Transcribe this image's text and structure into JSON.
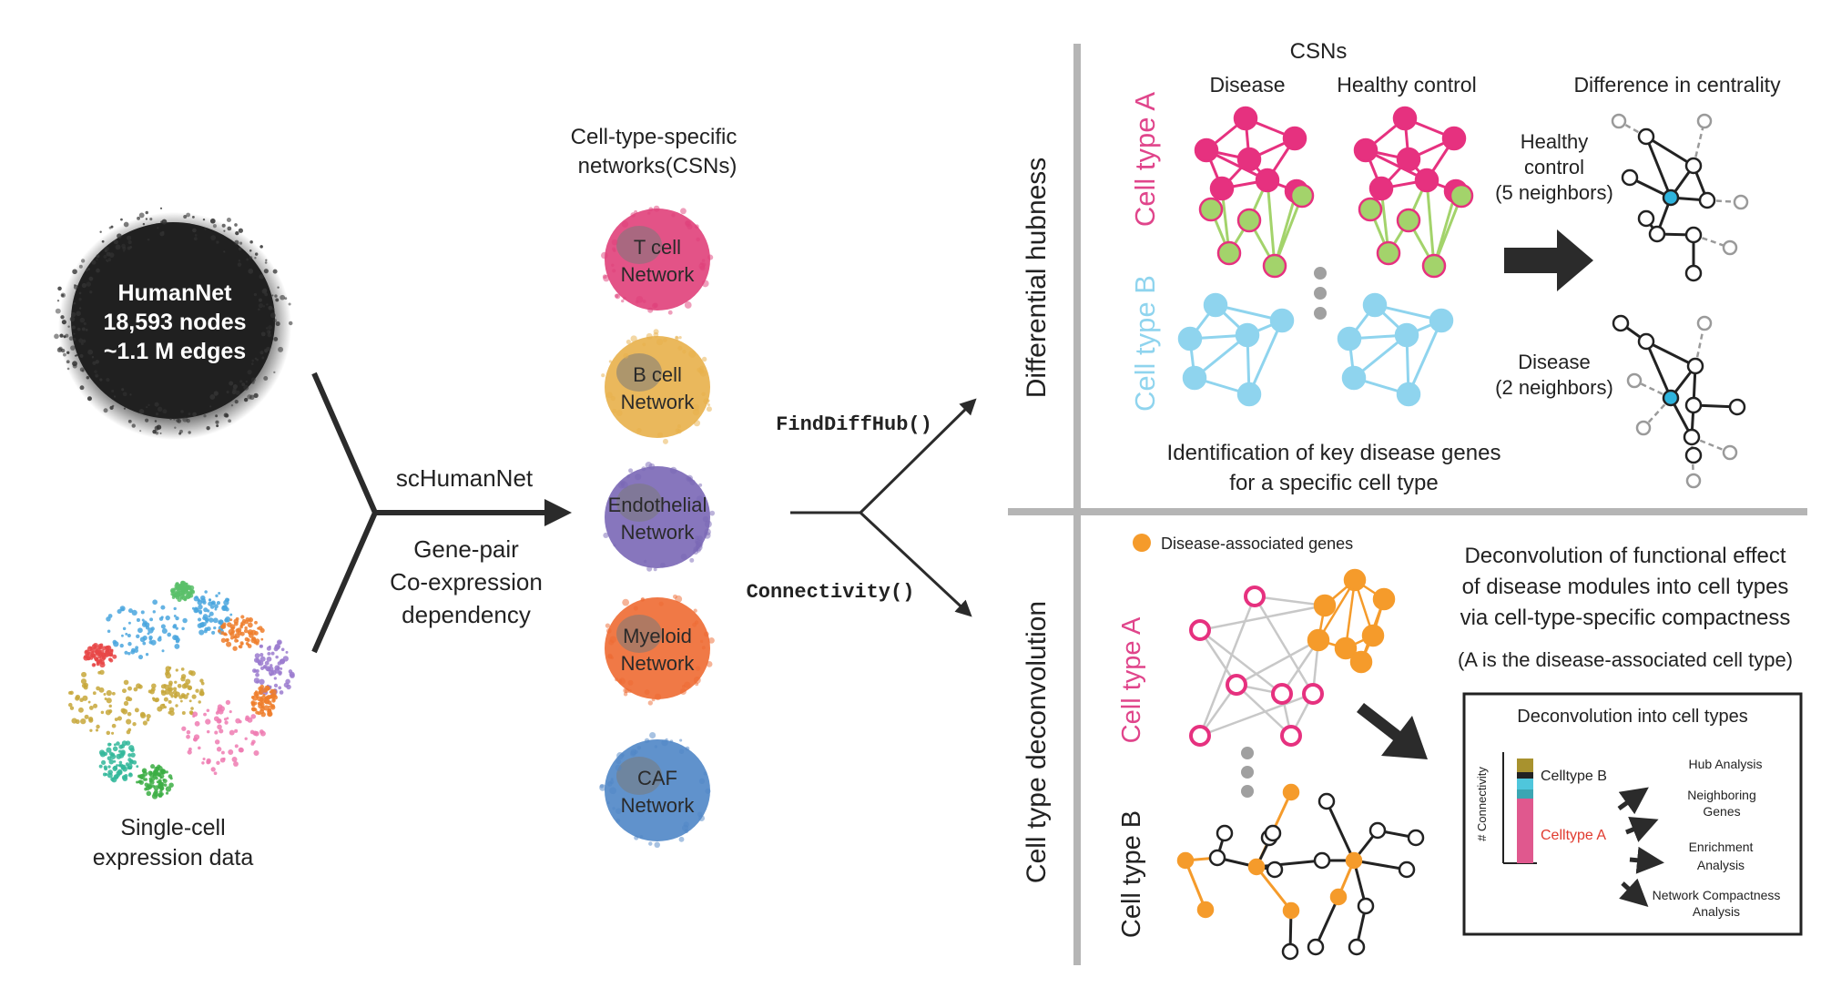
{
  "humannet": {
    "title": "HumanNet",
    "nodes": "18,593 nodes",
    "edges": "~1.1 M edges"
  },
  "single_cell": {
    "line1": "Single-cell",
    "line2": "expression data"
  },
  "schumannet_label": "scHumanNet",
  "gene_pair": {
    "line1": "Gene-pair",
    "line2": "Co-expression",
    "line3": "dependency"
  },
  "csn_header": {
    "line1": "Cell-type-specific",
    "line2": "networks(CSNs)"
  },
  "networks": [
    {
      "line1": "T cell",
      "line2": "Network",
      "color": "#e0407a"
    },
    {
      "line1": "B cell",
      "line2": "Network",
      "color": "#e8b04a"
    },
    {
      "line1": "Endothelial",
      "line2": "Network",
      "color": "#7a67b6"
    },
    {
      "line1": "Myeloid",
      "line2": "Network",
      "color": "#ee6a32"
    },
    {
      "line1": "CAF",
      "line2": "Network",
      "color": "#4f86c6"
    }
  ],
  "functions": {
    "find_diff_hub": "FindDiffHub()",
    "connectivity": "Connectivity()"
  },
  "hub_panel": {
    "side_title": "Differential hubness",
    "csns": "CSNs",
    "disease": "Disease",
    "healthy_control": "Healthy control",
    "cell_type_a": "Cell type A",
    "cell_type_b": "Cell type B",
    "difference": "Difference in centrality",
    "healthy": {
      "line1": "Healthy",
      "line2": "control",
      "line3": "(5 neighbors)"
    },
    "disease_label": {
      "line1": "Disease",
      "line2": "(2 neighbors)"
    },
    "identification": {
      "line1": "Identification of key disease genes",
      "line2": "for a specific cell type"
    }
  },
  "deconv_panel": {
    "side_title": "Cell type deconvolution",
    "legend": "Disease-associated genes",
    "cell_type_a": "Cell type A",
    "cell_type_b": "Cell type B",
    "title": {
      "line1": "Deconvolution of functional effect",
      "line2": "of disease modules into cell types",
      "line3": "via cell-type-specific compactness"
    },
    "note": "(A is the disease-associated cell type)",
    "box_title": "Deconvolution into cell types",
    "y_axis": "# Connectivity",
    "celltype_b": "Celltype B",
    "celltype_a": "Celltype A",
    "analyses": {
      "hub": "Hub  Analysis",
      "neighboring1": "Neighboring",
      "neighboring2": "Genes",
      "enrichment1": "Enrichment",
      "enrichment2": "Analysis",
      "compactness1": "Network Compactness",
      "compactness2": "Analysis"
    }
  },
  "colors": {
    "pink": "#e6317f",
    "green": "#a3d36b",
    "blue": "#8fd4ee",
    "orange": "#f59b2b",
    "divider": "#b5b5b5",
    "arrow": "#2b2b2b",
    "celltype_a_text": "#e0458b",
    "celltype_b_text": "#8fd4ee",
    "celltype_a_bar_label": "#e03a2e"
  }
}
